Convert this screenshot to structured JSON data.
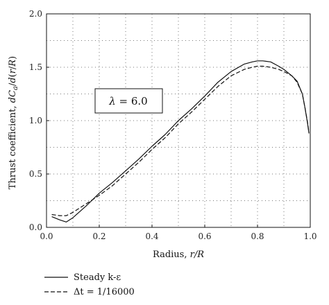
{
  "chart_data": {
    "type": "line",
    "xlabel": "Radius, r/R",
    "ylabel": "Thrust coefficient, dCa/d(r/R)",
    "xlim": [
      0.0,
      1.0
    ],
    "ylim": [
      0.0,
      2.0
    ],
    "xticks": [
      "0.0",
      "0.2",
      "0.4",
      "0.6",
      "0.8",
      "1.0"
    ],
    "yticks": [
      "0.0",
      "0.5",
      "1.0",
      "1.5",
      "2.0"
    ],
    "grid": true,
    "grid_style": "dotted",
    "annotation": "λ = 6.0",
    "legend_position": "bottom-left",
    "series": [
      {
        "name": "Steady k-ε",
        "dash": "solid",
        "x": [
          0.02,
          0.05,
          0.075,
          0.1,
          0.15,
          0.2,
          0.25,
          0.3,
          0.35,
          0.4,
          0.45,
          0.5,
          0.55,
          0.6,
          0.65,
          0.7,
          0.75,
          0.78,
          0.8,
          0.82,
          0.85,
          0.88,
          0.9,
          0.93,
          0.95,
          0.97,
          0.98,
          0.99,
          0.995
        ],
        "y": [
          0.1,
          0.07,
          0.05,
          0.09,
          0.2,
          0.32,
          0.42,
          0.53,
          0.64,
          0.76,
          0.87,
          1.0,
          1.11,
          1.23,
          1.36,
          1.46,
          1.53,
          1.55,
          1.56,
          1.56,
          1.55,
          1.51,
          1.48,
          1.42,
          1.37,
          1.25,
          1.12,
          0.97,
          0.88
        ]
      },
      {
        "name": "Δt = 1/16000",
        "dash": "dashed",
        "x": [
          0.02,
          0.05,
          0.075,
          0.1,
          0.15,
          0.2,
          0.25,
          0.3,
          0.35,
          0.4,
          0.45,
          0.5,
          0.55,
          0.6,
          0.65,
          0.7,
          0.75,
          0.78,
          0.8,
          0.82,
          0.85,
          0.88,
          0.9,
          0.93,
          0.95,
          0.97,
          0.98,
          0.99,
          0.995
        ],
        "y": [
          0.12,
          0.11,
          0.11,
          0.14,
          0.22,
          0.3,
          0.39,
          0.5,
          0.61,
          0.73,
          0.84,
          0.97,
          1.08,
          1.2,
          1.32,
          1.42,
          1.48,
          1.5,
          1.51,
          1.51,
          1.5,
          1.48,
          1.46,
          1.42,
          1.36,
          1.25,
          1.12,
          0.98,
          0.89
        ]
      }
    ]
  },
  "legend": {
    "steady_label": "Steady k-ε",
    "dt_label": "Δt = 1/16000"
  }
}
